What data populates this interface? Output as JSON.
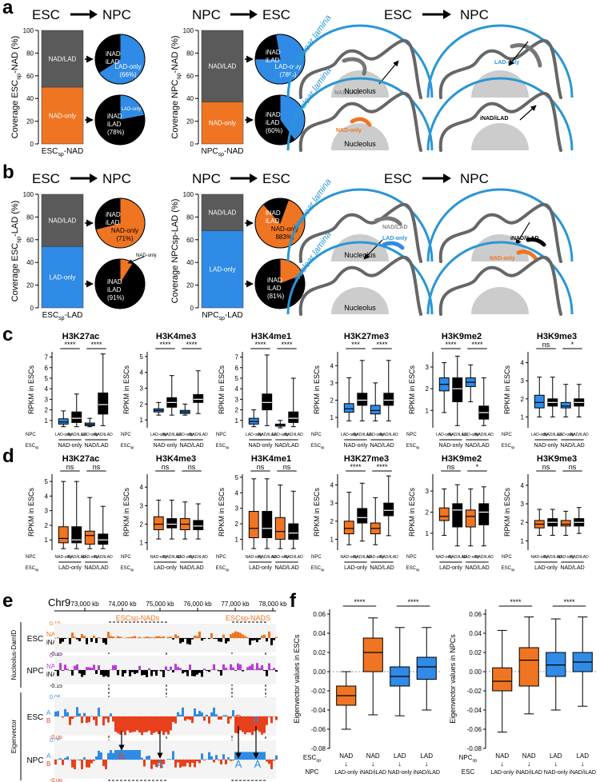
{
  "panel_letters": [
    "a",
    "b",
    "c",
    "d",
    "e",
    "f"
  ],
  "colors": {
    "orange": "#f07522",
    "blue": "#2f8be6",
    "gray": "#5a5a5a",
    "black": "#000000",
    "light_blue": "#2a96d6",
    "red": "#e8401c",
    "purple": "#b83dd6",
    "nucleolus": "#cccccc"
  },
  "a": {
    "left": {
      "header_from": "ESC",
      "header_to": "NPC",
      "ylabel": "Coverage ESC",
      "ylabel_sub": "sp",
      "ylabel_tail": "-NAD (%)",
      "xlabel": "ESC",
      "xlabel_sub": "sp",
      "xlabel_tail": "-NAD",
      "bar_segments": [
        {
          "label": "NAD-only",
          "value": 50
        },
        {
          "label": "NAD/LAD",
          "value": 50
        }
      ],
      "pie_top": {
        "labels": [
          "iNAD",
          "iLAD",
          "LAD-only",
          "(66%)"
        ],
        "lad_only_pct": 66
      },
      "pie_bottom": {
        "labels": [
          "iNAD",
          "iLAD",
          "(78%)",
          "LAD-only"
        ],
        "lad_only_pct": 22
      }
    },
    "right": {
      "header_from": "NPC",
      "header_to": "ESC",
      "ylabel": "Coverage NPC",
      "ylabel_sub": "sp",
      "ylabel_tail": "-NAD (%)",
      "xlabel": "NPC",
      "xlabel_sub": "sp",
      "xlabel_tail": "-NAD",
      "bar_segments": [
        {
          "label": "NAD-only",
          "value": 37
        },
        {
          "label": "NAD/LAD",
          "value": 63
        }
      ],
      "pie_top": {
        "labels": [
          "iNAD",
          "iLAD",
          "LAD-only",
          "(78%)"
        ],
        "lad_only_pct": 78
      },
      "pie_bottom": {
        "labels": [
          "iNAD",
          "iLAD",
          "(60%)"
        ],
        "lad_only_pct": 40
      }
    },
    "yticks": [
      "0",
      "20",
      "40",
      "60",
      "80",
      "100"
    ],
    "schematic": {
      "header_from": "ESC",
      "header_to": "NPC",
      "lamina": "Nuclear lamina",
      "nucleolus": "Nucleolus",
      "nadlad": "NAD/LAD",
      "ladonly": "LAD-only",
      "nadonly": "NAD-only",
      "inadilad": "iNAD/iLAD"
    }
  },
  "b": {
    "left": {
      "header_from": "ESC",
      "header_to": "NPC",
      "ylabel": "Coverage ESC",
      "ylabel_sub": "sp",
      "ylabel_tail": "-LAD (%)",
      "xlabel": "ESC",
      "xlabel_sub": "sp",
      "xlabel_tail": "-LAD",
      "bar_segments": [
        {
          "label": "LAD-only",
          "value": 54
        },
        {
          "label": "NAD/LAD",
          "value": 46
        }
      ],
      "pie_top": {
        "labels": [
          "iNAD",
          "iLAD",
          "NAD-only",
          "(71%)"
        ],
        "nad_only_pct": 71
      },
      "pie_bottom": {
        "labels": [
          "iNAD",
          "iLAD",
          "(91%)",
          "NAD-only"
        ],
        "nad_only_pct": 9
      }
    },
    "right": {
      "header_from": "NPC",
      "header_to": "ESC",
      "ylabel": "Coverage NPCsp-LAD (%)",
      "xlabel": "NPC",
      "xlabel_sub": "sp",
      "xlabel_tail": "-LAD",
      "bar_segments": [
        {
          "label": "LAD-only",
          "value": 68
        },
        {
          "label": "NAD/LAD",
          "value": 32
        }
      ],
      "pie_top": {
        "labels": [
          "iNAD",
          "iLAD",
          "NAD-only",
          "883%)"
        ],
        "nad_only_pct": 83
      },
      "pie_bottom": {
        "labels": [
          "iNAD",
          "iLAD",
          "(81%)"
        ],
        "nad_only_pct": 19
      }
    },
    "yticks": [
      "0",
      "20",
      "40",
      "60",
      "80",
      "100"
    ],
    "schematic": {
      "header_from": "ESC",
      "header_to": "NPC",
      "lamina": "Nuclear lamina",
      "nucleolus": "Nucleolus",
      "nadlad": "NAD/LAD",
      "nadonly": "NAD-only",
      "ladonly": "LAD-only",
      "inadilad": "iNAD/iLAD"
    }
  },
  "chart_data": [
    {
      "panel": "c",
      "type": "box",
      "ylabel": "RPKM in ESCs",
      "row_label_1": "NPC",
      "row_label_2": "ESC",
      "row_label_2_sub": "sp",
      "categories": [
        "LAD-only",
        "iNAD/iLAD",
        "LAD-only",
        "iNAD/iLAD"
      ],
      "groups": [
        "NAD-only",
        "NAD/LAD"
      ],
      "charts": [
        {
          "title": "H3K27ac",
          "yticks": [
            "1",
            "2",
            "3",
            "4",
            "5",
            "6",
            "7"
          ],
          "ylim": [
            0.3,
            7.5
          ],
          "sig": [
            "****",
            "****"
          ],
          "boxes": [
            [
              0.4,
              0.65,
              0.85,
              1.15,
              1.9
            ],
            [
              0.4,
              0.8,
              1.2,
              1.8,
              3.5
            ],
            [
              0.4,
              0.5,
              0.6,
              0.75,
              1.2
            ],
            [
              0.5,
              1.6,
              2.5,
              3.6,
              7.3
            ]
          ]
        },
        {
          "title": "H3K4me3",
          "yticks": [
            "1",
            "2",
            "3",
            "4",
            "5"
          ],
          "ylim": [
            0.5,
            5.3
          ],
          "sig": [
            "****",
            "****"
          ],
          "boxes": [
            [
              1.3,
              1.5,
              1.6,
              1.7,
              2.1
            ],
            [
              1.3,
              1.8,
              2.1,
              2.4,
              3.8
            ],
            [
              1.3,
              1.4,
              1.5,
              1.6,
              2.0
            ],
            [
              1.4,
              2.1,
              2.3,
              2.6,
              4.1
            ]
          ]
        },
        {
          "title": "H3K4me1",
          "yticks": [
            "1",
            "2",
            "3",
            "4",
            "5",
            "6",
            "7"
          ],
          "ylim": [
            0.3,
            7.5
          ],
          "sig": [
            "****",
            "****"
          ],
          "boxes": [
            [
              0.4,
              0.65,
              0.9,
              1.2,
              2.0
            ],
            [
              0.5,
              2.0,
              2.7,
              3.5,
              7.2
            ],
            [
              0.3,
              0.45,
              0.55,
              0.65,
              1.0
            ],
            [
              0.4,
              0.8,
              1.2,
              1.8,
              5.0
            ]
          ]
        },
        {
          "title": "H3K27me3",
          "yticks": [
            "1",
            "2",
            "3",
            "4"
          ],
          "ylim": [
            0.4,
            4.8
          ],
          "sig": [
            "***",
            "****"
          ],
          "boxes": [
            [
              0.8,
              1.3,
              1.5,
              1.8,
              3.3
            ],
            [
              0.8,
              1.7,
              2.0,
              2.4,
              4.3
            ],
            [
              0.8,
              1.2,
              1.4,
              1.7,
              3.0
            ],
            [
              0.8,
              1.7,
              2.0,
              2.4,
              4.3
            ]
          ]
        },
        {
          "title": "H3K9me2",
          "yticks": [
            "1",
            "2",
            "3"
          ],
          "ylim": [
            0.2,
            3.7
          ],
          "sig": [
            "****",
            "****"
          ],
          "boxes": [
            [
              0.9,
              1.9,
              2.2,
              2.5,
              3.2
            ],
            [
              0.3,
              1.4,
              2.0,
              2.5,
              3.5
            ],
            [
              1.4,
              2.1,
              2.3,
              2.5,
              3.1
            ],
            [
              0.3,
              0.6,
              0.9,
              1.2,
              2.5
            ]
          ]
        },
        {
          "title": "H3K9me3",
          "yticks": [
            "1",
            "2",
            "3",
            "4"
          ],
          "ylim": [
            0.4,
            4.6
          ],
          "sig": [
            "ns",
            "*"
          ],
          "boxes": [
            [
              1.0,
              1.5,
              1.8,
              2.2,
              3.2
            ],
            [
              1.0,
              1.6,
              1.8,
              2.0,
              3.2
            ],
            [
              1.0,
              1.5,
              1.6,
              1.8,
              2.8
            ],
            [
              1.0,
              1.6,
              1.8,
              2.0,
              2.8
            ]
          ]
        }
      ]
    },
    {
      "panel": "d",
      "type": "box",
      "ylabel": "RPKM in ESCs",
      "row_label_1": "NPC",
      "row_label_2": "ESC",
      "row_label_2_sub": "sp",
      "categories": [
        "NAD-only",
        "iNAD/iLAD",
        "NAD-only",
        "iNAD/iLAD"
      ],
      "groups": [
        "LAD-only",
        "NAD/LAD"
      ],
      "charts": [
        {
          "title": "H3K27ac",
          "yticks": [
            "1",
            "2",
            "3",
            "4",
            "5"
          ],
          "ylim": [
            0.3,
            5.5
          ],
          "sig": [
            "ns",
            "ns"
          ],
          "boxes": [
            [
              0.4,
              0.8,
              1.1,
              1.9,
              5.0
            ],
            [
              0.4,
              0.8,
              1.0,
              1.9,
              5.0
            ],
            [
              0.4,
              0.7,
              1.3,
              1.6,
              3.9
            ],
            [
              0.4,
              0.7,
              1.0,
              1.4,
              3.3
            ]
          ]
        },
        {
          "title": "H3K4me3",
          "yticks": [
            "1",
            "2",
            "3",
            "4"
          ],
          "ylim": [
            0.6,
            4.7
          ],
          "sig": [
            "ns",
            "ns"
          ],
          "boxes": [
            [
              1.2,
              1.7,
              2.0,
              2.4,
              3.3
            ],
            [
              1.2,
              1.8,
              2.0,
              2.3,
              3.3
            ],
            [
              1.2,
              1.7,
              2.0,
              2.3,
              3.2
            ],
            [
              1.2,
              1.7,
              1.9,
              2.2,
              3.1
            ]
          ]
        },
        {
          "title": "H3K4me1",
          "yticks": [
            "1",
            "2",
            "3",
            "4",
            "5"
          ],
          "ylim": [
            0.3,
            5.2
          ],
          "sig": [
            "ns",
            "ns"
          ],
          "boxes": [
            [
              0.4,
              1.1,
              1.7,
              2.8,
              4.9
            ],
            [
              0.4,
              1.1,
              1.7,
              2.8,
              4.9
            ],
            [
              0.4,
              1.0,
              1.5,
              2.4,
              4.5
            ],
            [
              0.4,
              1.0,
              1.4,
              2.0,
              4.1
            ]
          ]
        },
        {
          "title": "H3K27me3",
          "yticks": [
            "1",
            "2",
            "3",
            "4"
          ],
          "ylim": [
            0.4,
            4.6
          ],
          "sig": [
            "****",
            "****"
          ],
          "boxes": [
            [
              0.7,
              1.3,
              1.6,
              2.0,
              3.6
            ],
            [
              0.9,
              1.9,
              2.2,
              2.7,
              4.1
            ],
            [
              0.7,
              1.3,
              1.6,
              1.9,
              3.3
            ],
            [
              1.2,
              2.3,
              2.6,
              3.0,
              4.5
            ]
          ]
        },
        {
          "title": "H3K9me2",
          "yticks": [
            "1",
            "2",
            "3"
          ],
          "ylim": [
            0.2,
            3.8
          ],
          "sig": [
            "ns",
            "*"
          ],
          "boxes": [
            [
              0.9,
              1.6,
              1.8,
              2.2,
              3.1
            ],
            [
              0.4,
              1.3,
              2.1,
              2.4,
              3.3
            ],
            [
              0.4,
              1.3,
              1.8,
              2.1,
              3.1
            ],
            [
              0.4,
              1.4,
              2.0,
              2.4,
              3.2
            ]
          ]
        },
        {
          "title": "H3K9me3",
          "yticks": [
            "1",
            "2",
            "3",
            "4"
          ],
          "ylim": [
            0.5,
            4.6
          ],
          "sig": [
            "ns",
            "ns"
          ],
          "boxes": [
            [
              1.3,
              1.7,
              1.9,
              2.1,
              2.7
            ],
            [
              1.3,
              1.8,
              2.0,
              2.2,
              2.7
            ],
            [
              1.3,
              1.8,
              1.9,
              2.1,
              2.6
            ],
            [
              1.4,
              1.8,
              2.0,
              2.2,
              2.8
            ]
          ]
        }
      ]
    },
    {
      "panel": "f",
      "type": "box",
      "row_label_1_left": "NPC",
      "row_label_1_right": "ESC",
      "row_label_2": "ESC",
      "row_label_2_sub": "sp",
      "row_label_2_right": "NPC",
      "categories_left": [
        "NAD",
        "NAD",
        "LAD",
        "LAD"
      ],
      "categories_right": [
        "NAD",
        "NAD",
        "LAD",
        "LAD"
      ],
      "sub_left": [
        "LAD-only",
        "iNAD/iLAD",
        "NAD-only",
        "iNAD/iLAD"
      ],
      "sub_right": [
        "LAD-only",
        "iNAD/iLAD",
        "NAD-only",
        "iNAD/iLAD"
      ],
      "yticks": [
        "-0.08",
        "-0.06",
        "-0.04",
        "-0.02",
        "0.00",
        "0.02",
        "0.04",
        "0.06"
      ],
      "ylim": [
        -0.08,
        0.065
      ],
      "charts": [
        {
          "ylabel": "Eigenvector values in ESCs",
          "sig": [
            "****",
            "****"
          ],
          "boxes": [
            [
              -0.06,
              -0.035,
              -0.025,
              -0.015,
              0.0
            ],
            [
              -0.045,
              0.0,
              0.02,
              0.035,
              0.056
            ],
            [
              -0.046,
              -0.015,
              -0.005,
              0.005,
              0.046
            ],
            [
              -0.04,
              -0.008,
              0.005,
              0.015,
              0.046
            ]
          ]
        },
        {
          "ylabel": "Eigenvector values in NPCs",
          "sig": [
            "****",
            "****"
          ],
          "boxes": [
            [
              -0.063,
              -0.02,
              -0.01,
              0.004,
              0.043
            ],
            [
              -0.044,
              -0.015,
              0.012,
              0.025,
              0.057
            ],
            [
              -0.04,
              -0.005,
              0.007,
              0.02,
              0.055
            ],
            [
              -0.036,
              0.0,
              0.01,
              0.02,
              0.057
            ]
          ]
        }
      ]
    }
  ],
  "e": {
    "chrom": "Chr9",
    "ticks": [
      "73,000 kb",
      "74,000 kb",
      "75,000 kb",
      "76,000 kb",
      "77,000 kb",
      "78,000 kb"
    ],
    "region1": "ESCsp-NADs",
    "region2": "ESCsp-NADS",
    "group1": "Nucleolus-DamID",
    "group2": "Eigenvector",
    "tracks": [
      {
        "name": "ESC",
        "top": "NAD",
        "bottom": "iNAD",
        "max": "0.15",
        "min": "-0.15"
      },
      {
        "name": "NPC",
        "top": "NAD",
        "bottom": "iNAD",
        "max": "0.15",
        "min": "-0.15"
      },
      {
        "name": "ESC",
        "top": "A",
        "bottom": "B",
        "max": "0.06",
        "min": "-0.06"
      },
      {
        "name": "NPC",
        "top": "A",
        "bottom": "B",
        "max": "0.06",
        "min": "-0.06"
      }
    ],
    "annot": [
      "B",
      "B",
      "b",
      "A",
      "B",
      "a",
      "A",
      "A"
    ]
  }
}
